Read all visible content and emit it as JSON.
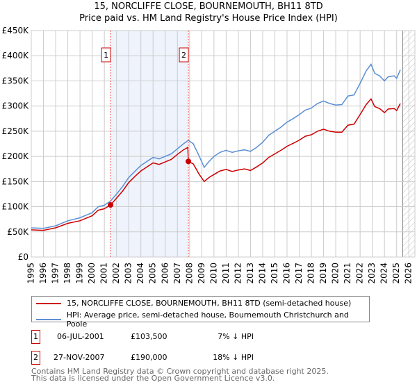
{
  "chart_data": {
    "type": "line",
    "title": "15, NORCLIFFE CLOSE, BOURNEMOUTH, BH11 8TD",
    "subtitle": "Price paid vs. HM Land Registry's House Price Index (HPI)",
    "xlim": [
      1995,
      2026.5
    ],
    "ylim": [
      0,
      450000
    ],
    "x_ticks": [
      "1995",
      "1996",
      "1997",
      "1998",
      "1999",
      "2000",
      "2001",
      "2002",
      "2003",
      "2004",
      "2005",
      "2006",
      "2007",
      "2008",
      "2009",
      "2010",
      "2011",
      "2012",
      "2013",
      "2014",
      "2015",
      "2016",
      "2017",
      "2018",
      "2019",
      "2020",
      "2021",
      "2022",
      "2023",
      "2024",
      "2025",
      "2026"
    ],
    "y_ticks": [
      {
        "v": 0,
        "label": "£0"
      },
      {
        "v": 50000,
        "label": "£50K"
      },
      {
        "v": 100000,
        "label": "£100K"
      },
      {
        "v": 150000,
        "label": "£150K"
      },
      {
        "v": 200000,
        "label": "£200K"
      },
      {
        "v": 250000,
        "label": "£250K"
      },
      {
        "v": 300000,
        "label": "£300K"
      },
      {
        "v": 350000,
        "label": "£350K"
      },
      {
        "v": 400000,
        "label": "£400K"
      },
      {
        "v": 450000,
        "label": "£450K"
      }
    ],
    "grid": true,
    "shaded_period": [
      2001.51,
      2007.9
    ],
    "forecast_hatch_from": 2025.5,
    "series": [
      {
        "name": "15, NORCLIFFE CLOSE, BOURNEMOUTH, BH11 8TD (semi-detached house)",
        "color": "#cc0000",
        "x": [
          1995,
          1996,
          1997,
          1998,
          1999,
          2000,
          2000.5,
          2001,
          2001.51,
          2002,
          2002.5,
          2003,
          2003.5,
          2004,
          2004.5,
          2005,
          2005.5,
          2006,
          2006.5,
          2007,
          2007.5,
          2007.85,
          2007.9,
          2008.3,
          2008.8,
          2009.2,
          2009.6,
          2010,
          2010.5,
          2011,
          2011.5,
          2012,
          2012.5,
          2013,
          2013.5,
          2014,
          2014.5,
          2015,
          2015.5,
          2016,
          2016.5,
          2017,
          2017.5,
          2018,
          2018.5,
          2019,
          2019.5,
          2020,
          2020.5,
          2021,
          2021.5,
          2022,
          2022.5,
          2022.9,
          2023.2,
          2023.6,
          2024,
          2024.3,
          2024.8,
          2025,
          2025.3
        ],
        "y": [
          54000,
          53000,
          58000,
          67000,
          72000,
          82000,
          93000,
          96000,
          103500,
          117000,
          131000,
          148000,
          160000,
          171000,
          179000,
          187000,
          184000,
          189000,
          194000,
          204000,
          213000,
          218000,
          190000,
          185000,
          164000,
          150000,
          158000,
          164000,
          171000,
          174000,
          170000,
          173000,
          175000,
          172000,
          179000,
          187000,
          198000,
          205000,
          212000,
          220000,
          226000,
          232000,
          240000,
          243000,
          250000,
          254000,
          250000,
          248000,
          248000,
          262000,
          264000,
          283000,
          303000,
          314000,
          299000,
          295000,
          287000,
          294000,
          295000,
          291000,
          305000
        ]
      },
      {
        "name": "HPI: Average price, semi-detached house, Bournemouth Christchurch and Poole",
        "color": "#5b8fd4",
        "x": [
          1995,
          1996,
          1997,
          1998,
          1999,
          2000,
          2000.5,
          2001,
          2001.5,
          2002,
          2002.5,
          2003,
          2003.5,
          2004,
          2004.5,
          2005,
          2005.5,
          2006,
          2006.5,
          2007,
          2007.5,
          2007.9,
          2008.3,
          2008.8,
          2009.2,
          2009.6,
          2010,
          2010.5,
          2011,
          2011.5,
          2012,
          2012.5,
          2013,
          2013.5,
          2014,
          2014.5,
          2015,
          2015.5,
          2016,
          2016.5,
          2017,
          2017.5,
          2018,
          2018.5,
          2019,
          2019.5,
          2020,
          2020.5,
          2021,
          2021.5,
          2022,
          2022.5,
          2022.9,
          2023.2,
          2023.6,
          2024,
          2024.3,
          2024.8,
          2025,
          2025.3
        ],
        "y": [
          58000,
          57000,
          62000,
          72000,
          78000,
          88000,
          100000,
          103000,
          111000,
          125000,
          140000,
          158000,
          170000,
          182000,
          190000,
          198000,
          195000,
          200000,
          205000,
          215000,
          225000,
          232000,
          225000,
          200000,
          178000,
          190000,
          200000,
          208000,
          212000,
          208000,
          211000,
          213000,
          210000,
          218000,
          228000,
          242000,
          250000,
          258000,
          268000,
          275000,
          283000,
          292000,
          296000,
          305000,
          310000,
          305000,
          302000,
          303000,
          320000,
          322000,
          345000,
          370000,
          383000,
          365000,
          360000,
          350000,
          358000,
          360000,
          355000,
          372000
        ]
      }
    ],
    "sales": [
      {
        "id": "1",
        "x": 2001.51,
        "y": 103500,
        "date": "06-JUL-2001",
        "price": "£103,500",
        "hpi": "7% ↓ HPI"
      },
      {
        "id": "2",
        "x": 2007.9,
        "y": 190000,
        "date": "27-NOV-2007",
        "price": "£190,000",
        "hpi": "18% ↓ HPI"
      }
    ],
    "legend_position": "below"
  },
  "footer": {
    "line1": "Contains HM Land Registry data © Crown copyright and database right 2025.",
    "line2": "This data is licensed under the Open Government Licence v3.0."
  }
}
